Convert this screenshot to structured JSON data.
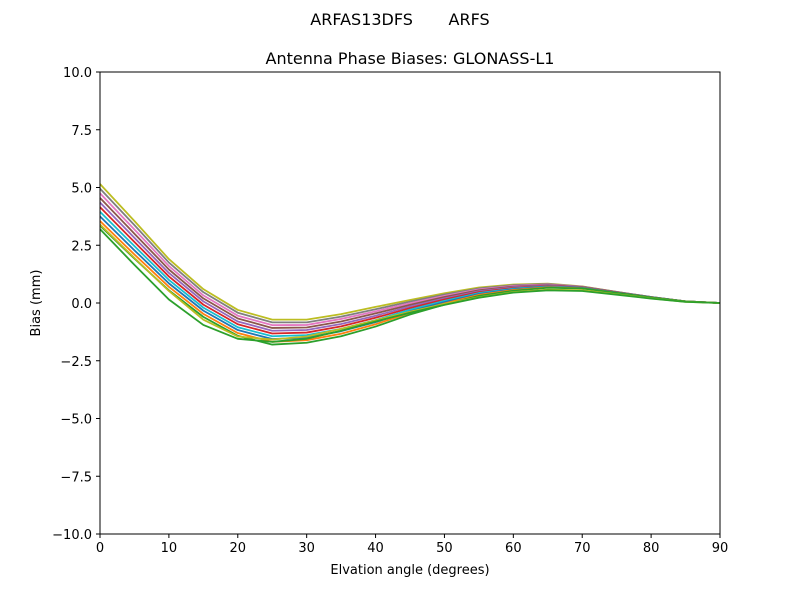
{
  "figure": {
    "suptitle": "ARFAS13DFS       ARFS"
  },
  "chart_data": {
    "type": "line",
    "title": "Antenna Phase Biases: GLONASS-L1",
    "xlabel": "Elvation angle (degrees)",
    "ylabel": "Bias (mm)",
    "xlim": [
      0,
      90
    ],
    "ylim": [
      -10,
      10
    ],
    "xticks": [
      0,
      10,
      20,
      30,
      40,
      50,
      60,
      70,
      80,
      90
    ],
    "xtick_labels": [
      "0",
      "10",
      "20",
      "30",
      "40",
      "50",
      "60",
      "70",
      "80",
      "90"
    ],
    "yticks": [
      10,
      7.5,
      5,
      2.5,
      0,
      -2.5,
      -5,
      -7.5,
      -10
    ],
    "ytick_labels": [
      "10.0",
      "7.5",
      "5.0",
      "2.5",
      "0.0",
      "−2.5",
      "−5.0",
      "−7.5",
      "−10.0"
    ],
    "grid": false,
    "legend": "none",
    "x": [
      0,
      5,
      10,
      15,
      20,
      25,
      30,
      35,
      40,
      45,
      50,
      55,
      60,
      65,
      70,
      75,
      80,
      85,
      90
    ],
    "series": [
      {
        "color": "#bcbd22",
        "values": [
          5.15,
          3.55,
          1.9,
          0.6,
          -0.3,
          -0.72,
          -0.72,
          -0.48,
          -0.17,
          0.13,
          0.42,
          0.67,
          0.8,
          0.84,
          0.72,
          0.48,
          0.26,
          0.07,
          0.0
        ]
      },
      {
        "color": "#7f7f7f",
        "values": [
          4.95,
          3.37,
          1.75,
          0.47,
          -0.42,
          -0.84,
          -0.84,
          -0.59,
          -0.27,
          0.06,
          0.37,
          0.63,
          0.77,
          0.82,
          0.71,
          0.48,
          0.26,
          0.07,
          0.0
        ]
      },
      {
        "color": "#e377c2",
        "values": [
          4.75,
          3.18,
          1.6,
          0.33,
          -0.55,
          -0.96,
          -0.95,
          -0.69,
          -0.36,
          -0.01,
          0.31,
          0.59,
          0.74,
          0.8,
          0.7,
          0.47,
          0.26,
          0.07,
          0.0
        ]
      },
      {
        "color": "#8c564b",
        "values": [
          4.55,
          3.0,
          1.45,
          0.2,
          -0.67,
          -1.08,
          -1.06,
          -0.8,
          -0.45,
          -0.08,
          0.26,
          0.55,
          0.71,
          0.78,
          0.69,
          0.47,
          0.26,
          0.07,
          0.0
        ]
      },
      {
        "color": "#9467bd",
        "values": [
          4.35,
          2.82,
          1.3,
          0.07,
          -0.8,
          -1.2,
          -1.17,
          -0.91,
          -0.55,
          -0.15,
          0.2,
          0.51,
          0.68,
          0.76,
          0.68,
          0.46,
          0.25,
          0.07,
          0.0
        ]
      },
      {
        "color": "#d62728",
        "values": [
          4.15,
          2.64,
          1.15,
          -0.07,
          -0.92,
          -1.32,
          -1.28,
          -1.01,
          -0.64,
          -0.22,
          0.15,
          0.47,
          0.65,
          0.74,
          0.67,
          0.46,
          0.25,
          0.07,
          0.0
        ]
      },
      {
        "color": "#17becf",
        "values": [
          3.95,
          2.46,
          1.0,
          -0.2,
          -1.05,
          -1.44,
          -1.39,
          -1.12,
          -0.74,
          -0.29,
          0.09,
          0.43,
          0.62,
          0.72,
          0.66,
          0.45,
          0.25,
          0.07,
          0.0
        ]
      },
      {
        "color": "#1f77b4",
        "values": [
          3.75,
          2.28,
          0.85,
          -0.33,
          -1.17,
          -1.56,
          -1.5,
          -1.22,
          -0.83,
          -0.36,
          0.04,
          0.39,
          0.59,
          0.7,
          0.65,
          0.45,
          0.25,
          0.07,
          0.0
        ]
      },
      {
        "color": "#ff7f0e",
        "values": [
          3.55,
          2.1,
          0.7,
          -0.47,
          -1.3,
          -1.68,
          -1.61,
          -1.33,
          -0.92,
          -0.43,
          -0.02,
          0.35,
          0.56,
          0.68,
          0.64,
          0.44,
          0.24,
          0.07,
          0.0
        ]
      },
      {
        "color": "#2ca02c",
        "values": [
          3.35,
          1.92,
          0.55,
          -0.6,
          -1.42,
          -1.8,
          -1.72,
          -1.44,
          -1.02,
          -0.5,
          -0.07,
          0.31,
          0.53,
          0.66,
          0.63,
          0.44,
          0.24,
          0.07,
          0.0
        ]
      },
      {
        "color": "#bcbd22",
        "values": [
          3.4,
          1.95,
          0.52,
          -0.72,
          -1.45,
          -1.58,
          -1.45,
          -1.12,
          -0.75,
          -0.38,
          -0.04,
          0.25,
          0.47,
          0.58,
          0.55,
          0.38,
          0.2,
          0.05,
          0.0
        ]
      },
      {
        "color": "#2ca02c",
        "values": [
          3.2,
          1.65,
          0.15,
          -0.95,
          -1.55,
          -1.68,
          -1.55,
          -1.2,
          -0.8,
          -0.42,
          -0.08,
          0.23,
          0.45,
          0.55,
          0.52,
          0.36,
          0.19,
          0.05,
          0.0
        ]
      }
    ]
  }
}
